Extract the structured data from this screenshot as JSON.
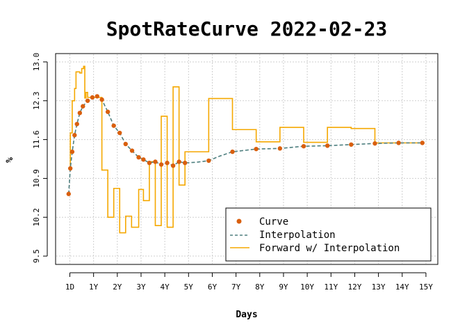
{
  "chart_data": {
    "type": "line",
    "title": "SpotRateCurve 2022-02-23",
    "xlabel": "Days",
    "ylabel": "%",
    "xlim": [
      -0.6,
      15.5
    ],
    "ylim": [
      9.35,
      13.15
    ],
    "grid": true,
    "legend_position": "bottom-right",
    "x_ticks": [
      {
        "value": 0,
        "label": "1D"
      },
      {
        "value": 1,
        "label": "1Y"
      },
      {
        "value": 2,
        "label": "2Y"
      },
      {
        "value": 3,
        "label": "3Y"
      },
      {
        "value": 4,
        "label": "4Y"
      },
      {
        "value": 5,
        "label": "5Y"
      },
      {
        "value": 6,
        "label": "6Y"
      },
      {
        "value": 7,
        "label": "7Y"
      },
      {
        "value": 8,
        "label": "8Y"
      },
      {
        "value": 9,
        "label": "9Y"
      },
      {
        "value": 10,
        "label": "10Y"
      },
      {
        "value": 11,
        "label": "11Y"
      },
      {
        "value": 12,
        "label": "12Y"
      },
      {
        "value": 13,
        "label": "13Y"
      },
      {
        "value": 14,
        "label": "14Y"
      },
      {
        "value": 15,
        "label": "15Y"
      }
    ],
    "y_ticks": [
      {
        "value": 9.5,
        "label": "9.5"
      },
      {
        "value": 10.2,
        "label": "10.2"
      },
      {
        "value": 10.9,
        "label": "10.9"
      },
      {
        "value": 11.6,
        "label": "11.6"
      },
      {
        "value": 12.3,
        "label": "12.3"
      },
      {
        "value": 13.0,
        "label": "13.0"
      }
    ],
    "series": [
      {
        "name": "Curve",
        "kind": "points",
        "color": "#d95f0e",
        "x": [
          -0.05,
          0.02,
          0.1,
          0.2,
          0.3,
          0.42,
          0.55,
          0.75,
          0.95,
          1.15,
          1.35,
          1.6,
          1.85,
          2.1,
          2.35,
          2.62,
          2.9,
          3.1,
          3.35,
          3.6,
          3.85,
          4.1,
          4.35,
          4.6,
          4.85,
          5.85,
          6.85,
          7.85,
          8.85,
          9.85,
          10.85,
          11.85,
          12.85,
          13.85,
          14.85
        ],
        "y": [
          10.62,
          11.08,
          11.38,
          11.68,
          11.88,
          12.08,
          12.2,
          12.3,
          12.36,
          12.38,
          12.32,
          12.1,
          11.85,
          11.72,
          11.52,
          11.4,
          11.28,
          11.24,
          11.18,
          11.2,
          11.15,
          11.18,
          11.13,
          11.2,
          11.18,
          11.22,
          11.38,
          11.43,
          11.44,
          11.48,
          11.49,
          11.51,
          11.53,
          11.54,
          11.54
        ]
      },
      {
        "name": "Interpolation",
        "kind": "dashed-line",
        "color": "#4e7f7f",
        "x": [
          -0.05,
          0.02,
          0.1,
          0.2,
          0.3,
          0.42,
          0.55,
          0.75,
          0.95,
          1.15,
          1.35,
          1.6,
          1.85,
          2.1,
          2.35,
          2.62,
          2.9,
          3.1,
          3.35,
          3.6,
          3.85,
          4.1,
          4.35,
          4.6,
          4.85,
          5.3,
          5.85,
          6.3,
          6.85,
          7.85,
          8.85,
          9.85,
          10.85,
          11.85,
          12.85,
          13.85,
          14.85
        ],
        "y": [
          10.62,
          11.08,
          11.38,
          11.68,
          11.88,
          12.08,
          12.2,
          12.3,
          12.36,
          12.38,
          12.32,
          12.1,
          11.85,
          11.72,
          11.52,
          11.4,
          11.28,
          11.24,
          11.18,
          11.2,
          11.15,
          11.18,
          11.13,
          11.2,
          11.18,
          11.19,
          11.22,
          11.3,
          11.38,
          11.43,
          11.44,
          11.48,
          11.49,
          11.51,
          11.53,
          11.54,
          11.54
        ]
      },
      {
        "name": "Forward w/ Interpolation",
        "kind": "step",
        "color": "#f5a800",
        "x": [
          -0.05,
          0.02,
          0.1,
          0.2,
          0.26,
          0.32,
          0.42,
          0.5,
          0.58,
          0.63,
          0.68,
          0.75,
          0.8,
          1.35,
          1.6,
          1.85,
          2.1,
          2.35,
          2.6,
          2.9,
          3.1,
          3.35,
          3.6,
          3.85,
          4.1,
          4.35,
          4.6,
          4.85,
          5.85,
          6.85,
          7.85,
          8.85,
          9.85,
          10.85,
          11.85,
          12.85,
          14.85
        ],
        "y": [
          11.08,
          11.72,
          12.3,
          12.52,
          12.82,
          12.82,
          12.8,
          12.88,
          12.92,
          12.35,
          12.45,
          12.36,
          12.36,
          11.05,
          10.2,
          10.72,
          9.92,
          10.22,
          10.02,
          10.7,
          10.5,
          11.2,
          10.05,
          12.02,
          10.02,
          12.55,
          10.78,
          11.38,
          12.34,
          11.78,
          11.56,
          11.82,
          11.55,
          11.82,
          11.8,
          11.54,
          11.54
        ]
      }
    ]
  }
}
